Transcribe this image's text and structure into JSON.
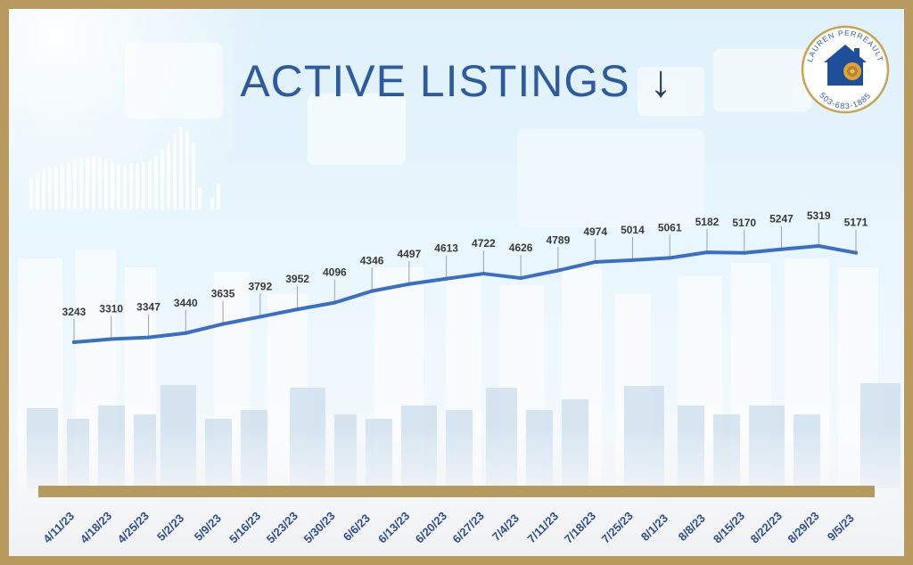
{
  "header": {
    "title": "ACTIVE LISTINGS",
    "trend_icon": "down-arrow-icon"
  },
  "logo": {
    "name": "LAUREN PERREAULT",
    "phone": "503-683-1885",
    "icon": "house-rose-icon"
  },
  "colors": {
    "frame": "#b89a5e",
    "line": "#3c6ec2",
    "title": "#2e5a9e",
    "labels": "#2e4f8f"
  },
  "chart_data": {
    "type": "line",
    "title": "ACTIVE LISTINGS",
    "categories": [
      "4/11/23",
      "4/18/23",
      "4/25/23",
      "5/2/23",
      "5/9/23",
      "5/16/23",
      "5/23/23",
      "5/30/23",
      "6/6/23",
      "6/13/23",
      "6/20/23",
      "6/27/23",
      "7/4/23",
      "7/11/23",
      "7/18/23",
      "7/25/23",
      "8/1/23",
      "8/8/23",
      "8/15/23",
      "8/22/23",
      "8/29/23",
      "9/5/23"
    ],
    "series": [
      {
        "values": [
          3243,
          3310,
          3347,
          3440,
          3635,
          3792,
          3952,
          4096,
          4346,
          4497,
          4613,
          4722,
          4626,
          4789,
          4974,
          5014,
          5061,
          5182,
          5170,
          5247,
          5319,
          5171
        ]
      }
    ],
    "xlabel": "",
    "ylabel": "",
    "data_labels": true,
    "grid": false
  }
}
